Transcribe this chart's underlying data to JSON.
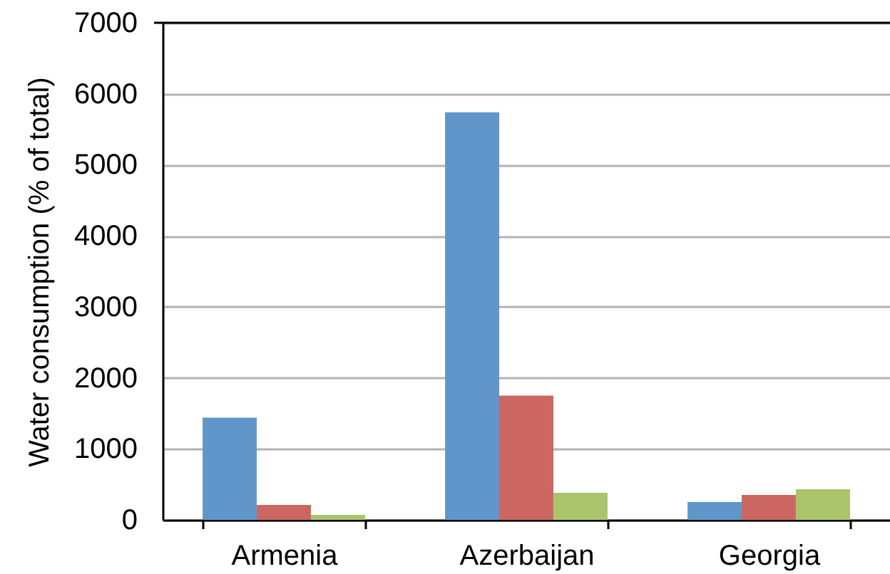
{
  "chart_data": {
    "type": "bar",
    "ylabel": "Water consumption (% of total)",
    "categories": [
      "Armenia",
      "Azerbaijan",
      "Georgia"
    ],
    "series": [
      {
        "color": "#6096ca",
        "values": [
          1440,
          5740,
          250
        ]
      },
      {
        "color": "#cc6660",
        "values": [
          210,
          1750,
          350
        ]
      },
      {
        "color": "#a9c46b",
        "values": [
          70,
          380,
          430
        ]
      }
    ],
    "ylim": [
      0,
      7000
    ],
    "yticks": [
      0,
      1000,
      2000,
      3000,
      4000,
      5000,
      6000,
      7000
    ],
    "grid": "y"
  }
}
